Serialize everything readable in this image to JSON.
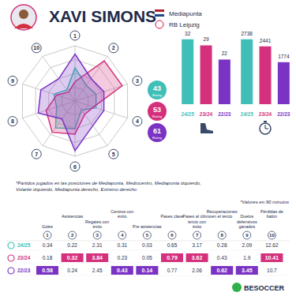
{
  "header": {
    "name": "XAVI SIMONS",
    "position": "Mediapunta",
    "team": "RB Leipzig"
  },
  "ratings": [
    {
      "season": "24/25",
      "value": 43,
      "label": "Rating",
      "color": "#3fbfb8"
    },
    {
      "season": "23/24",
      "value": 53,
      "label": "Rating",
      "color": "#d4307c"
    },
    {
      "season": "22/23",
      "value": 61,
      "label": "Rating",
      "color": "#7b33c4"
    }
  ],
  "chart_data": [
    {
      "type": "radar",
      "categories": [
        "1",
        "2",
        "3",
        "4",
        "5",
        "6",
        "7",
        "8",
        "9",
        "10"
      ],
      "rlim": [
        0,
        100
      ],
      "grid": true,
      "series": [
        {
          "name": "24/25",
          "color": "#3fbfb8",
          "values": [
            60,
            35,
            40,
            40,
            20,
            50,
            60,
            35,
            40,
            25
          ]
        },
        {
          "name": "23/24",
          "color": "#d4307c",
          "values": [
            35,
            90,
            90,
            35,
            30,
            60,
            70,
            55,
            35,
            20
          ]
        },
        {
          "name": "22/23",
          "color": "#7b33c4",
          "values": [
            85,
            50,
            55,
            55,
            55,
            90,
            40,
            70,
            65,
            50
          ]
        }
      ]
    },
    {
      "type": "bar",
      "categories": [
        "24/25",
        "23/24",
        "22/23"
      ],
      "values": [
        32,
        29,
        22
      ],
      "colors": [
        "#3fbfb8",
        "#d4307c",
        "#7b33c4"
      ],
      "ylim": [
        0,
        35
      ],
      "data_labels": true,
      "tick_labels": "x"
    },
    {
      "type": "bar",
      "categories": [
        "24/25",
        "23/24",
        "22/23"
      ],
      "values": [
        2738,
        2441,
        1774
      ],
      "colors": [
        "#3fbfb8",
        "#d4307c",
        "#7b33c4"
      ],
      "ylim": [
        0,
        3000
      ],
      "data_labels": true,
      "tick_labels": "x"
    }
  ],
  "notes": [
    "*Partidos jugados en las posiciones de Mediapunta, Mediocentro, Mediapunta izquierdo, Volante izquierdo, Mediapunta derecho, Extremo derecho",
    "*Valores en 90 minutos"
  ],
  "table": {
    "columns": [
      {
        "number": "1",
        "label": "Goles"
      },
      {
        "number": "2",
        "label": "Asistencias"
      },
      {
        "number": "3",
        "label": "Regates con éxito"
      },
      {
        "number": "4",
        "label": "Centros con éxito"
      },
      {
        "number": "5",
        "label": "Pre asistencias"
      },
      {
        "number": "6",
        "label": "Pases clave"
      },
      {
        "number": "7",
        "label": "Pases al último tercio con éxito"
      },
      {
        "number": "8",
        "label": "Recuperaciones en el tercio"
      },
      {
        "number": "9",
        "label": "Duelos defensivos ganados"
      },
      {
        "number": "10",
        "label": "Pérdidas de balón"
      }
    ],
    "rows": [
      {
        "season": "24/25",
        "color": "#3fbfb8",
        "values": [
          0.34,
          0.22,
          2.31,
          0.31,
          0.03,
          0.65,
          3.17,
          0.28,
          2.09,
          12.62
        ],
        "highlight": [
          false,
          false,
          false,
          false,
          false,
          false,
          false,
          false,
          false,
          false
        ]
      },
      {
        "season": "23/24",
        "color": "#d4307c",
        "values": [
          0.18,
          0.32,
          3.84,
          0.23,
          0.05,
          0.79,
          3.62,
          0.43,
          1.9,
          10.41
        ],
        "highlight": [
          false,
          true,
          true,
          false,
          false,
          true,
          true,
          false,
          false,
          true
        ]
      },
      {
        "season": "22/23",
        "color": "#7b33c4",
        "values": [
          0.58,
          0.24,
          2.45,
          0.43,
          0.14,
          0.77,
          2.06,
          0.62,
          3.45,
          10.7
        ],
        "highlight": [
          true,
          false,
          false,
          true,
          true,
          false,
          false,
          true,
          true,
          false
        ]
      }
    ]
  },
  "brand": "BESOCCER"
}
